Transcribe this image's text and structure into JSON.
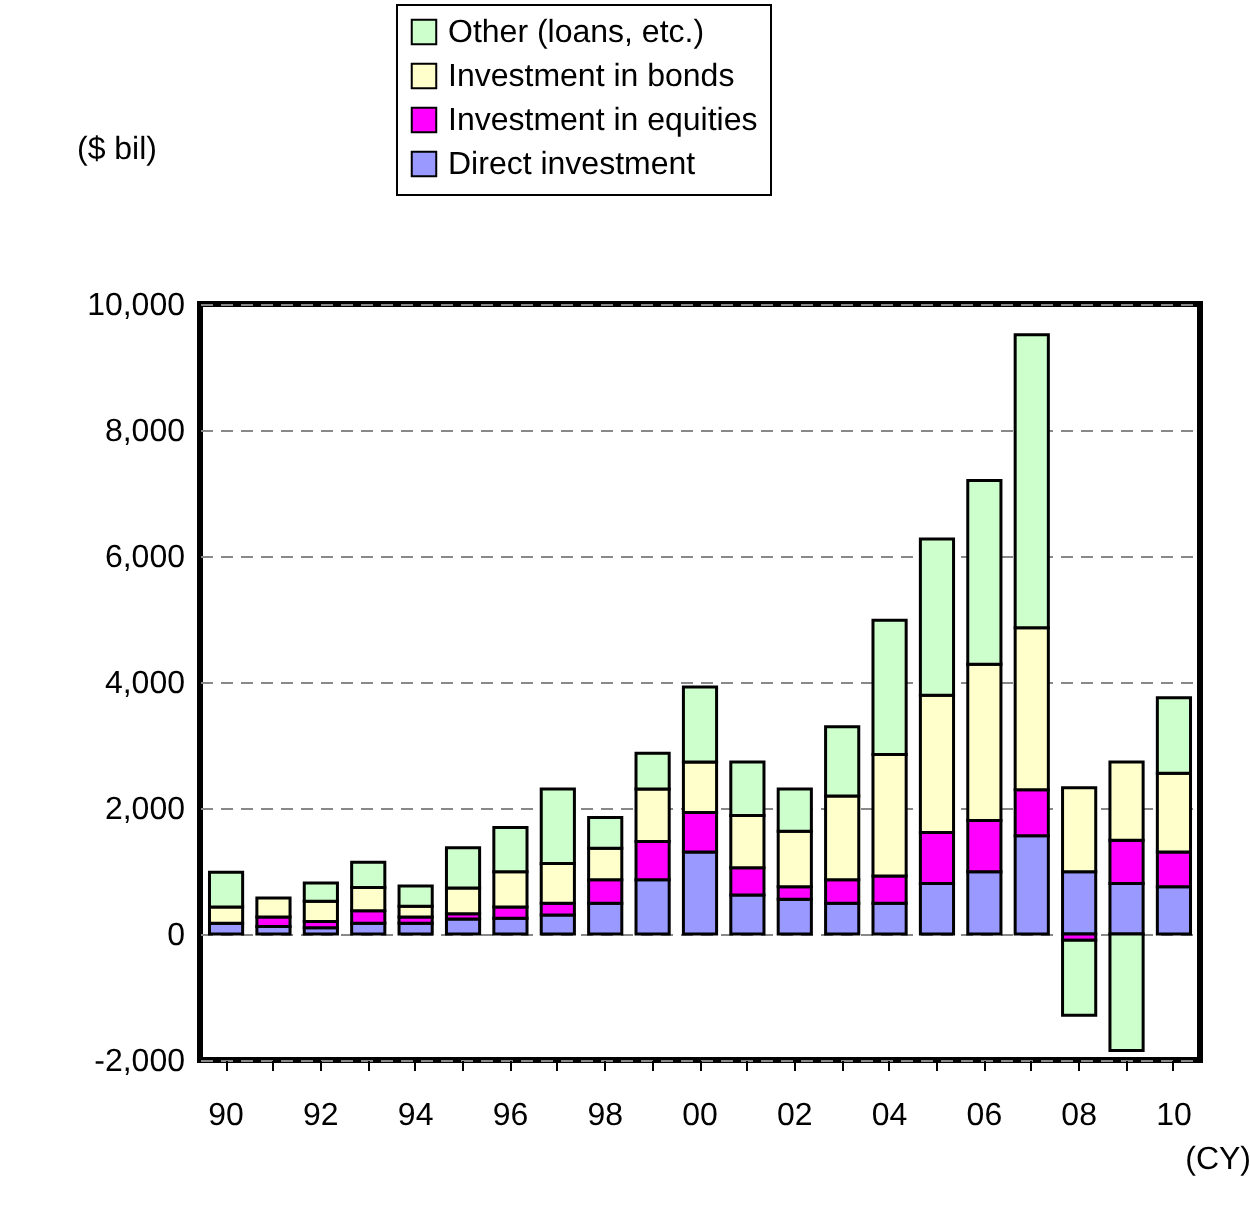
{
  "chart_data": {
    "type": "bar",
    "stacked": true,
    "ylabel": "($ bil)",
    "xlabel": "(CY)",
    "categories": [
      "90",
      null,
      "92",
      null,
      "94",
      null,
      "96",
      null,
      "98",
      null,
      "00",
      null,
      "02",
      null,
      "04",
      null,
      "06",
      null,
      "08",
      null,
      "10"
    ],
    "series": [
      {
        "name": "Direct investment",
        "color": "#9999ff",
        "values": [
          170,
          120,
          100,
          170,
          170,
          240,
          250,
          300,
          490,
          860,
          1300,
          620,
          550,
          490,
          490,
          800,
          990,
          1560,
          990,
          800,
          750
        ]
      },
      {
        "name": "Investment in equities",
        "color": "#ff00ff",
        "values": [
          null,
          150,
          100,
          200,
          100,
          80,
          180,
          190,
          370,
          610,
          630,
          430,
          200,
          370,
          430,
          810,
          810,
          730,
          -100,
          690,
          550
        ]
      },
      {
        "name": "Investment in bonds",
        "color": "#ffffcc",
        "values": [
          260,
          300,
          320,
          370,
          170,
          410,
          560,
          630,
          500,
          830,
          800,
          830,
          880,
          1330,
          1930,
          2180,
          2480,
          2570,
          1330,
          1240,
          1250
        ]
      },
      {
        "name": "Other (loans, etc.)",
        "color": "#ccffcc",
        "values": [
          550,
          null,
          290,
          400,
          320,
          640,
          700,
          1180,
          490,
          570,
          1190,
          850,
          670,
          1100,
          2130,
          2480,
          2920,
          4650,
          -1190,
          -1850,
          1200
        ]
      }
    ],
    "ylim": [
      -2000,
      10000
    ],
    "yticks": [
      {
        "value": -2000,
        "label": "-2,000"
      },
      0,
      {
        "value": 2000,
        "label": "2,000"
      },
      {
        "value": 4000,
        "label": "4,000"
      },
      {
        "value": 6000,
        "label": "6,000"
      },
      {
        "value": 8000,
        "label": "8,000"
      },
      {
        "value": 10000,
        "label": "10,000"
      }
    ],
    "grid": "y",
    "legend": "top"
  }
}
